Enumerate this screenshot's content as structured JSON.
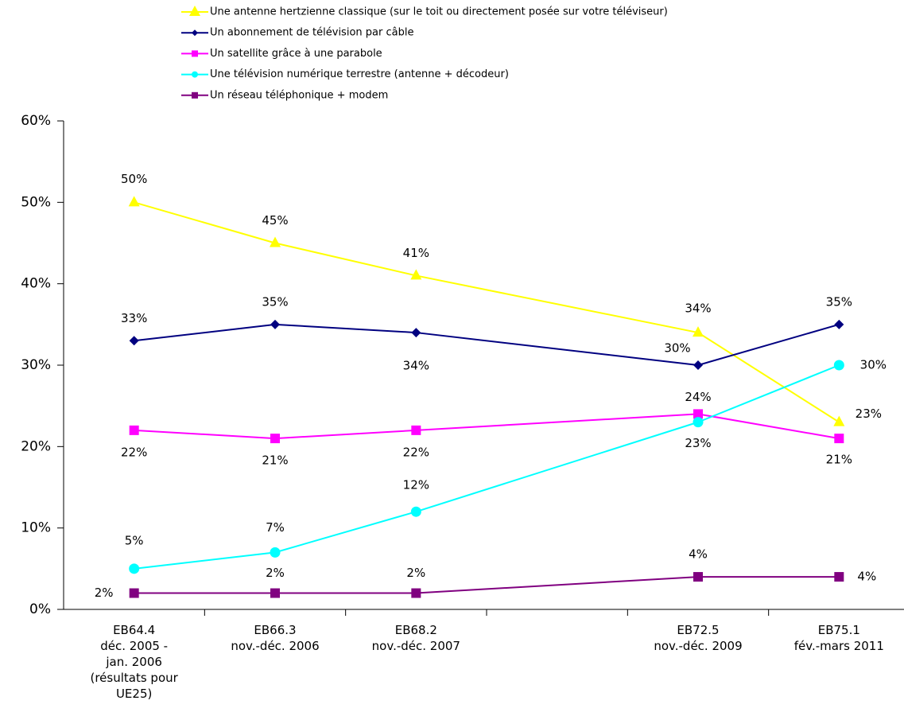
{
  "chart_data": {
    "type": "line",
    "categories": [
      "EB64.4\ndéc. 2005 -\njan. 2006\n(résultats pour\nUE25)",
      "EB66.3\nnov.-déc. 2006",
      "EB68.2\nnov.-déc. 2007",
      null,
      "EB72.5\nnov.-déc. 2009",
      "EB75.1\nfév.-mars 2011"
    ],
    "series": [
      {
        "name": "Une antenne hertzienne classique (sur le toit ou directement posée sur votre téléviseur)",
        "color": "#ffff00",
        "marker": "triangle",
        "values": [
          50,
          45,
          41,
          null,
          34,
          23
        ],
        "value_labels": [
          "50%",
          "45%",
          "41%",
          null,
          "34%",
          "23%"
        ]
      },
      {
        "name": "Un abonnement de télévision par câble",
        "color": "#000080",
        "marker": "diamond",
        "values": [
          33,
          35,
          34,
          null,
          30,
          35
        ],
        "value_labels": [
          "33%",
          "35%",
          "34%",
          null,
          "30%",
          "35%"
        ]
      },
      {
        "name": "Un satellite grâce à une parabole",
        "color": "#ff00ff",
        "marker": "square",
        "values": [
          22,
          21,
          22,
          null,
          24,
          21
        ],
        "value_labels": [
          "22%",
          "21%",
          "22%",
          null,
          "24%",
          "21%"
        ]
      },
      {
        "name": "Une télévision numérique terrestre (antenne + décodeur)",
        "color": "#00ffff",
        "marker": "circle",
        "values": [
          5,
          7,
          12,
          null,
          23,
          30
        ],
        "value_labels": [
          "5%",
          "7%",
          "12%",
          null,
          "23%",
          "30%"
        ]
      },
      {
        "name": "Un réseau téléphonique + modem",
        "color": "#800080",
        "marker": "square",
        "values": [
          2,
          2,
          2,
          null,
          4,
          4
        ],
        "value_labels": [
          "2%",
          "2%",
          "2%",
          null,
          "4%",
          "4%"
        ]
      }
    ],
    "ylim": [
      0,
      60
    ],
    "yticks": [
      {
        "value": 0,
        "label": "0%"
      },
      {
        "value": 10,
        "label": "10%"
      },
      {
        "value": 20,
        "label": "20%"
      },
      {
        "value": 30,
        "label": "30%"
      },
      {
        "value": 40,
        "label": "40%"
      },
      {
        "value": 50,
        "label": "50%"
      },
      {
        "value": 60,
        "label": "60%"
      }
    ],
    "legend": "top"
  }
}
